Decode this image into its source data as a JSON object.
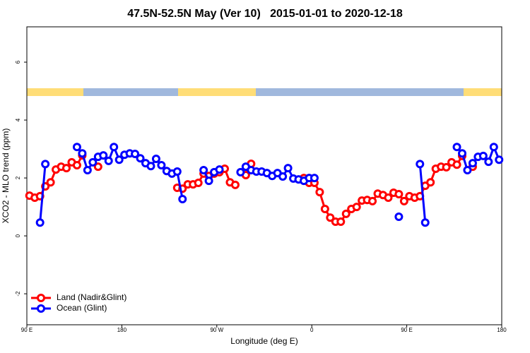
{
  "chart_data": {
    "type": "line",
    "title": "47.5N-52.5N May (Ver 10)   2015-01-01 to 2020-12-18",
    "x_label": "Longitude (deg E)",
    "y_label": "XCO2 - MLO trend (ppm)",
    "xlim": [
      90,
      540
    ],
    "ylim": [
      -3.07,
      7.22
    ],
    "xticks": [
      {
        "value": 90,
        "label": "90 E"
      },
      180,
      {
        "value": 270,
        "label": "90 W"
      },
      {
        "value": 360,
        "label": "0"
      },
      {
        "value": 450,
        "label": "90 E"
      },
      {
        "value": 540,
        "label": "180"
      }
    ],
    "yticks": [
      -2,
      0,
      2,
      4,
      6
    ],
    "legend": "bottom-left",
    "x": [
      92.5,
      97.5,
      102.5,
      107.5,
      112.5,
      117.5,
      122.5,
      127.5,
      132.5,
      137.5,
      142.5,
      147.5,
      152.5,
      157.5,
      162.5,
      167.5,
      172.5,
      177.5,
      182.5,
      187.5,
      192.5,
      197.5,
      202.5,
      207.5,
      212.5,
      217.5,
      222.5,
      227.5,
      232.5,
      237.5,
      242.5,
      247.5,
      252.5,
      257.5,
      262.5,
      267.5,
      272.5,
      277.5,
      282.5,
      287.5,
      292.5,
      297.5,
      302.5,
      307.5,
      312.5,
      317.5,
      322.5,
      327.5,
      332.5,
      337.5,
      342.5,
      347.5,
      352.5,
      357.5,
      362.5,
      367.5,
      372.5,
      377.5,
      382.5,
      387.5,
      392.5,
      397.5,
      402.5,
      407.5,
      412.5,
      417.5,
      422.5,
      427.5,
      432.5,
      437.5,
      442.5,
      447.5,
      452.5,
      457.5,
      462.5,
      467.5,
      472.5,
      477.5,
      482.5,
      487.5,
      492.5,
      497.5,
      502.5,
      507.5,
      512.5,
      517.5,
      522.5,
      527.5,
      532.5,
      537.5
    ],
    "series": [
      {
        "name": "Land (Nadir&Glint)",
        "color": "#ff0000",
        "values": [
          1.39,
          1.32,
          1.37,
          1.71,
          1.85,
          2.29,
          2.39,
          2.34,
          2.54,
          2.44,
          2.78,
          null,
          null,
          2.39,
          null,
          null,
          null,
          null,
          null,
          null,
          null,
          null,
          null,
          null,
          null,
          null,
          null,
          null,
          1.66,
          1.63,
          1.78,
          1.78,
          1.83,
          2.15,
          2.07,
          2.15,
          2.2,
          2.32,
          1.85,
          1.76,
          null,
          2.1,
          2.49,
          null,
          null,
          null,
          null,
          null,
          null,
          null,
          null,
          null,
          2.0,
          1.83,
          1.83,
          1.51,
          0.93,
          0.63,
          0.49,
          0.49,
          0.76,
          0.93,
          1.0,
          1.22,
          1.24,
          1.2,
          1.46,
          1.41,
          1.32,
          1.49,
          1.44,
          1.2,
          1.37,
          1.32,
          1.37,
          1.73,
          1.85,
          2.32,
          2.39,
          2.37,
          2.54,
          2.46,
          2.76,
          null,
          2.39,
          null,
          null,
          null,
          null,
          null
        ]
      },
      {
        "name": "Ocean (Glint)",
        "color": "#0000ff",
        "values": [
          null,
          null,
          0.46,
          2.48,
          null,
          null,
          null,
          null,
          null,
          3.07,
          2.85,
          2.27,
          2.54,
          2.73,
          2.78,
          2.59,
          3.07,
          2.63,
          2.8,
          2.85,
          2.83,
          2.68,
          2.51,
          2.41,
          2.66,
          2.44,
          2.24,
          2.15,
          2.22,
          1.27,
          null,
          null,
          null,
          2.27,
          1.9,
          2.2,
          2.29,
          null,
          null,
          null,
          2.2,
          2.39,
          2.27,
          2.22,
          2.22,
          2.17,
          2.07,
          2.17,
          2.05,
          2.34,
          1.98,
          1.95,
          1.9,
          2.0,
          2.0,
          null,
          null,
          null,
          null,
          null,
          null,
          null,
          null,
          null,
          null,
          null,
          null,
          null,
          null,
          null,
          0.66,
          null,
          null,
          null,
          2.48,
          0.46,
          null,
          null,
          null,
          null,
          null,
          3.07,
          2.85,
          2.27,
          2.51,
          2.73,
          2.76,
          2.56,
          3.07,
          2.63
        ]
      }
    ]
  }
}
